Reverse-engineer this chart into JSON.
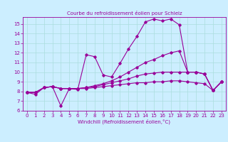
{
  "title": "Courbe du refroidissement éolien pour Schleiz",
  "xlabel": "Windchill (Refroidissement éolien,°C)",
  "xlim": [
    -0.5,
    23.5
  ],
  "ylim": [
    6,
    15.7
  ],
  "yticks": [
    6,
    7,
    8,
    9,
    10,
    11,
    12,
    13,
    14,
    15
  ],
  "xticks": [
    0,
    1,
    2,
    3,
    4,
    5,
    6,
    7,
    8,
    9,
    10,
    11,
    12,
    13,
    14,
    15,
    16,
    17,
    18,
    19,
    20,
    21,
    22,
    23
  ],
  "bg_color": "#cceeff",
  "line_color": "#990099",
  "grid_color": "#aadddd",
  "lines": [
    {
      "x": [
        0,
        1,
        2,
        3,
        4,
        5,
        6,
        7,
        8,
        9,
        10,
        11,
        12,
        13,
        14,
        15,
        16,
        17,
        18,
        19,
        20,
        21,
        22,
        23
      ],
      "y": [
        7.9,
        7.7,
        8.4,
        8.5,
        6.5,
        8.3,
        8.2,
        11.8,
        11.6,
        9.7,
        9.5,
        10.9,
        12.4,
        13.7,
        15.2,
        15.5,
        15.3,
        15.5,
        14.9,
        10.0,
        10.0,
        9.8,
        8.1,
        9.0
      ]
    },
    {
      "x": [
        0,
        1,
        2,
        3,
        4,
        5,
        6,
        7,
        8,
        9,
        10,
        11,
        12,
        13,
        14,
        15,
        16,
        17,
        18,
        19,
        20,
        21,
        22,
        23
      ],
      "y": [
        7.9,
        7.9,
        8.4,
        8.5,
        8.3,
        8.3,
        8.3,
        8.4,
        8.6,
        8.8,
        9.1,
        9.5,
        10.0,
        10.5,
        11.0,
        11.3,
        11.7,
        12.0,
        12.2,
        10.0,
        10.0,
        9.8,
        8.1,
        9.0
      ]
    },
    {
      "x": [
        0,
        1,
        2,
        3,
        4,
        5,
        6,
        7,
        8,
        9,
        10,
        11,
        12,
        13,
        14,
        15,
        16,
        17,
        18,
        19,
        20,
        21,
        22,
        23
      ],
      "y": [
        7.9,
        7.9,
        8.4,
        8.5,
        8.3,
        8.3,
        8.3,
        8.4,
        8.5,
        8.7,
        8.9,
        9.1,
        9.3,
        9.6,
        9.8,
        9.9,
        10.0,
        10.0,
        10.0,
        10.0,
        10.0,
        9.8,
        8.1,
        9.0
      ]
    },
    {
      "x": [
        0,
        1,
        2,
        3,
        4,
        5,
        6,
        7,
        8,
        9,
        10,
        11,
        12,
        13,
        14,
        15,
        16,
        17,
        18,
        19,
        20,
        21,
        22,
        23
      ],
      "y": [
        7.9,
        7.9,
        8.4,
        8.5,
        8.3,
        8.3,
        8.3,
        8.3,
        8.4,
        8.5,
        8.6,
        8.7,
        8.8,
        8.9,
        8.9,
        9.0,
        9.0,
        9.1,
        9.1,
        9.0,
        8.9,
        8.8,
        8.1,
        9.0
      ]
    }
  ]
}
